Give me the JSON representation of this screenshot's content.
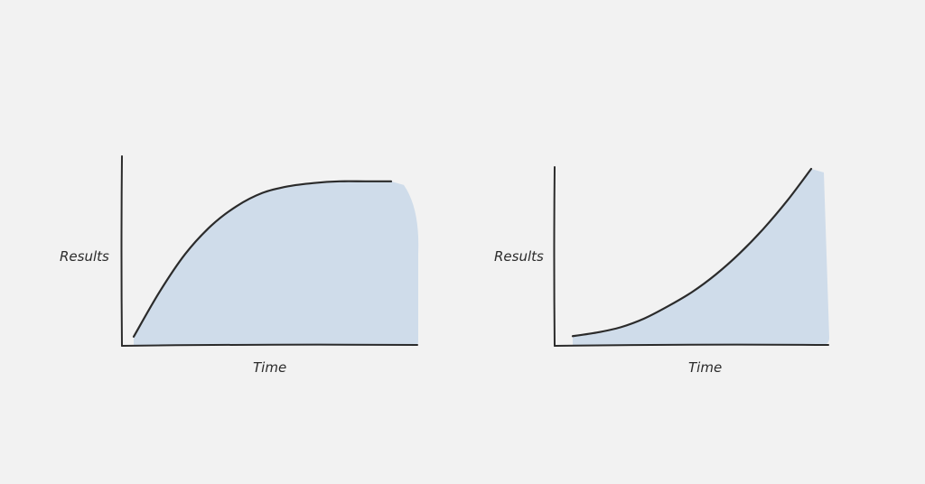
{
  "chart_data": [
    {
      "type": "area",
      "xlabel": "Time",
      "ylabel": "Results",
      "shape": "plateau",
      "x": [
        0,
        0.1,
        0.2,
        0.3,
        0.4,
        0.5,
        0.6,
        0.7,
        0.8,
        0.9,
        1.0
      ],
      "y": [
        0.05,
        0.32,
        0.55,
        0.72,
        0.84,
        0.92,
        0.96,
        0.98,
        0.99,
        0.99,
        0.99
      ],
      "colors": {
        "fill": "#cfdcea",
        "line": "#2b2b2b"
      }
    },
    {
      "type": "area",
      "xlabel": "Time",
      "ylabel": "Results",
      "shape": "exponential",
      "x": [
        0,
        0.1,
        0.2,
        0.3,
        0.4,
        0.5,
        0.6,
        0.7,
        0.8,
        0.9,
        1.0
      ],
      "y": [
        0.05,
        0.07,
        0.1,
        0.15,
        0.22,
        0.3,
        0.4,
        0.52,
        0.66,
        0.82,
        1.0
      ],
      "colors": {
        "fill": "#cfdcea",
        "line": "#2b2b2b"
      }
    }
  ]
}
